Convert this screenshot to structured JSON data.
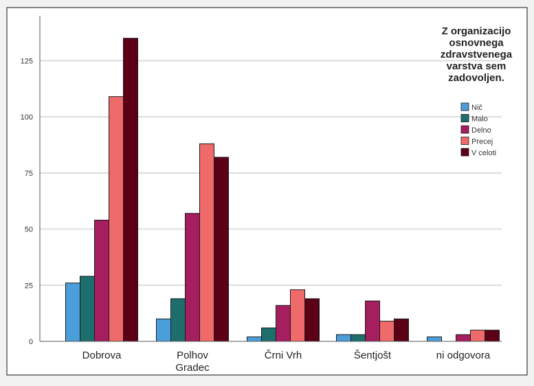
{
  "chart_data": {
    "type": "bar",
    "title": "",
    "xlabel": "",
    "ylabel": "",
    "ylim": [
      0,
      145
    ],
    "yticks": [
      0,
      25,
      50,
      75,
      100,
      125
    ],
    "grid": true,
    "legend_position": "top-right",
    "legend": {
      "title_lines": [
        "Z organizacijo",
        "osnovnega",
        "zdravstvenega",
        "varstva sem",
        "zadovoljen."
      ]
    },
    "categories": [
      [
        "Dobrova"
      ],
      [
        "Polhov",
        "Gradec"
      ],
      [
        "Črni Vrh"
      ],
      [
        "Šentjošt"
      ],
      [
        "ni odgovora"
      ]
    ],
    "series": [
      {
        "name": "Nič",
        "color": "#4a9fdb",
        "values": [
          26,
          10,
          2,
          3,
          2
        ]
      },
      {
        "name": "Malo",
        "color": "#1f6e6e",
        "values": [
          29,
          19,
          6,
          3,
          0
        ]
      },
      {
        "name": "Delno",
        "color": "#a51e5f",
        "values": [
          54,
          57,
          16,
          18,
          3
        ]
      },
      {
        "name": "Precej",
        "color": "#ef6b6b",
        "values": [
          109,
          88,
          23,
          9,
          5
        ]
      },
      {
        "name": "V celoti",
        "color": "#5c0016",
        "values": [
          135,
          82,
          19,
          10,
          5
        ]
      }
    ]
  }
}
